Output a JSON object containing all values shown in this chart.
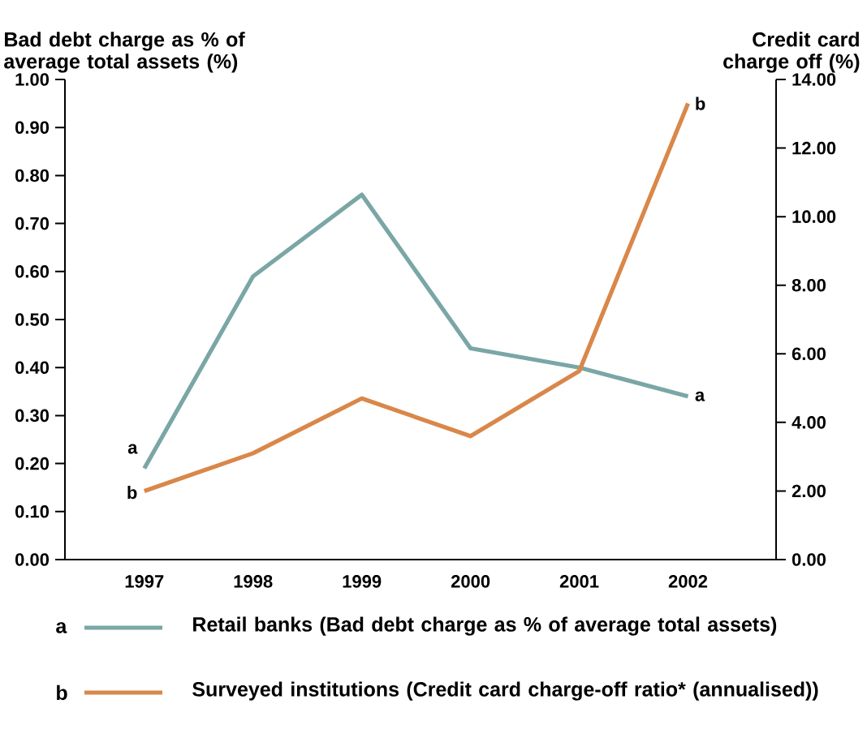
{
  "chart_data": {
    "type": "line",
    "ylabel": "Bad debt charge as % of average total assets (%)",
    "y2label": "Credit card charge off (%)",
    "categories": [
      "1997",
      "1998",
      "1999",
      "2000",
      "2001",
      "2002"
    ],
    "series": [
      {
        "name": "Retail banks (Bad debt charge as % of average total assets)",
        "color": "#7aa6a6",
        "values": [
          0.19,
          0.59,
          0.76,
          0.44,
          0.4,
          0.34
        ]
      },
      {
        "name": "Surveyed institutions (Credit card charge-off ratio* (annualised))",
        "color": "#d9874a",
        "axis": "y2",
        "values": [
          2.0,
          3.1,
          4.7,
          3.6,
          5.5,
          13.3
        ]
      }
    ],
    "ylim": [
      0,
      1
    ],
    "yticks": [
      {
        "value": 0,
        "label": "0.00"
      },
      {
        "value": 0.1,
        "label": "0.10"
      },
      {
        "value": 0.2,
        "label": "0.20"
      },
      {
        "value": 0.3,
        "label": "0.30"
      },
      {
        "value": 0.4,
        "label": "0.40"
      },
      {
        "value": 0.5,
        "label": "0.50"
      },
      {
        "value": 0.6,
        "label": "0.60"
      },
      {
        "value": 0.7,
        "label": "0.70"
      },
      {
        "value": 0.8,
        "label": "0.80"
      },
      {
        "value": 0.9,
        "label": "0.90"
      },
      {
        "value": 1,
        "label": "1.00"
      }
    ],
    "y2lim": [
      0,
      14
    ],
    "y2ticks": [
      {
        "value": 0,
        "label": "0.00"
      },
      {
        "value": 2,
        "label": "2.00"
      },
      {
        "value": 4,
        "label": "4.00"
      },
      {
        "value": 6,
        "label": "6.00"
      },
      {
        "value": 8,
        "label": "8.00"
      },
      {
        "value": 10,
        "label": "10.00"
      },
      {
        "value": 12,
        "label": "12.00"
      },
      {
        "value": 14,
        "label": "14.00"
      }
    ],
    "annotations": [
      {
        "text": "a",
        "x": "1997",
        "y": 0.19
      },
      {
        "text": "b",
        "x": "1997",
        "y": 0.14
      },
      {
        "text": "a",
        "x": "2002",
        "y": 0.34
      },
      {
        "text": "b",
        "x": "2002",
        "y": 0.95
      },
      "a",
      "b"
    ],
    "legend": "bottom",
    "grid": false,
    "marker": "none",
    "line_style": "solid"
  }
}
